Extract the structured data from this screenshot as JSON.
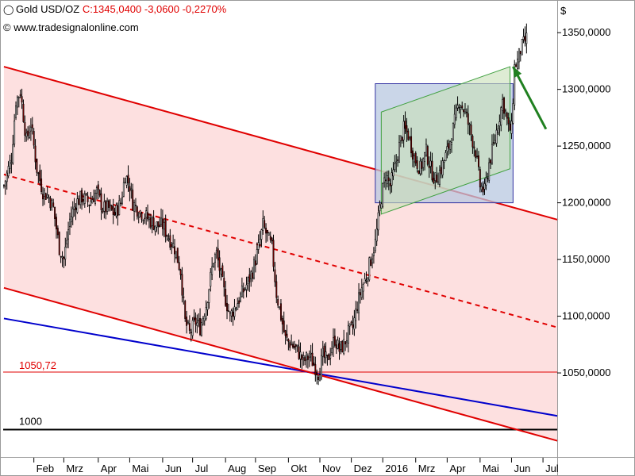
{
  "header": {
    "instrument": "Gold USD/OZ",
    "quote": "C:1345,0400 -3,0600 -0,2270%",
    "copyright_symbol": "©",
    "source": "www.tradesignalonline.com"
  },
  "colors": {
    "bull": "#ffffff",
    "bear": "#8b0000",
    "wick": "#000000",
    "channel_line": "#e00000",
    "channel_fill": "#fde0e0",
    "support_line": "#0000cc",
    "level_1050": "#e00000",
    "level_1000": "#000000",
    "box_fill": "#b8c8e0",
    "box_border": "#3030a0",
    "small_channel_fill": "#c8e0b8",
    "small_channel_line": "#40a040",
    "arrow": "#208020"
  },
  "chart_data": {
    "type": "candlestick",
    "currency_label": "$",
    "y_axis": {
      "ylim": [
        978,
        1376
      ],
      "ticks": [
        1050,
        1100,
        1150,
        1200,
        1250,
        1300,
        1350
      ],
      "tick_labels": [
        "1050,0000",
        "1100,0000",
        "1150,0000",
        "1200,0000",
        "1250,0000",
        "1300,0000",
        "1350,0000"
      ]
    },
    "x_axis": {
      "labels": [
        "Feb",
        "Mrz",
        "Apr",
        "Mai",
        "Jun",
        "Jul",
        "Aug",
        "Sep",
        "Okt",
        "Nov",
        "Dez",
        "2016",
        "Mrz",
        "Apr",
        "Mai",
        "Jun",
        "Jul"
      ],
      "index": [
        20,
        40,
        63,
        84,
        106,
        126,
        148,
        168,
        190,
        211,
        232,
        253,
        275,
        296,
        318,
        339,
        360
      ]
    },
    "n_bars": 370,
    "price_anchors": [
      [
        0,
        1215
      ],
      [
        5,
        1240
      ],
      [
        8,
        1290
      ],
      [
        11,
        1298
      ],
      [
        15,
        1255
      ],
      [
        18,
        1270
      ],
      [
        22,
        1230
      ],
      [
        26,
        1210
      ],
      [
        30,
        1205
      ],
      [
        33,
        1195
      ],
      [
        37,
        1160
      ],
      [
        40,
        1150
      ],
      [
        44,
        1185
      ],
      [
        48,
        1200
      ],
      [
        52,
        1205
      ],
      [
        57,
        1200
      ],
      [
        62,
        1210
      ],
      [
        66,
        1195
      ],
      [
        70,
        1195
      ],
      [
        74,
        1190
      ],
      [
        78,
        1200
      ],
      [
        81,
        1225
      ],
      [
        84,
        1215
      ],
      [
        86,
        1200
      ],
      [
        89,
        1195
      ],
      [
        93,
        1190
      ],
      [
        97,
        1185
      ],
      [
        102,
        1180
      ],
      [
        106,
        1180
      ],
      [
        110,
        1170
      ],
      [
        114,
        1160
      ],
      [
        118,
        1140
      ],
      [
        121,
        1095
      ],
      [
        124,
        1085
      ],
      [
        128,
        1095
      ],
      [
        131,
        1090
      ],
      [
        135,
        1110
      ],
      [
        140,
        1150
      ],
      [
        142,
        1155
      ],
      [
        145,
        1135
      ],
      [
        148,
        1115
      ],
      [
        151,
        1100
      ],
      [
        155,
        1110
      ],
      [
        159,
        1120
      ],
      [
        163,
        1130
      ],
      [
        166,
        1140
      ],
      [
        170,
        1160
      ],
      [
        173,
        1180
      ],
      [
        176,
        1170
      ],
      [
        179,
        1160
      ],
      [
        182,
        1120
      ],
      [
        185,
        1100
      ],
      [
        188,
        1080
      ],
      [
        192,
        1075
      ],
      [
        196,
        1070
      ],
      [
        200,
        1060
      ],
      [
        204,
        1065
      ],
      [
        206,
        1060
      ],
      [
        210,
        1050
      ],
      [
        213,
        1065
      ],
      [
        216,
        1060
      ],
      [
        218,
        1070
      ],
      [
        221,
        1080
      ],
      [
        224,
        1070
      ],
      [
        227,
        1075
      ],
      [
        230,
        1085
      ],
      [
        233,
        1090
      ],
      [
        236,
        1110
      ],
      [
        239,
        1125
      ],
      [
        242,
        1135
      ],
      [
        245,
        1150
      ],
      [
        248,
        1165
      ],
      [
        250,
        1185
      ],
      [
        252,
        1205
      ],
      [
        255,
        1225
      ],
      [
        258,
        1215
      ],
      [
        261,
        1230
      ],
      [
        264,
        1250
      ],
      [
        267,
        1265
      ],
      [
        270,
        1260
      ],
      [
        274,
        1240
      ],
      [
        278,
        1230
      ],
      [
        282,
        1245
      ],
      [
        285,
        1230
      ],
      [
        288,
        1220
      ],
      [
        292,
        1230
      ],
      [
        296,
        1245
      ],
      [
        300,
        1265
      ],
      [
        304,
        1290
      ],
      [
        308,
        1280
      ],
      [
        312,
        1260
      ],
      [
        315,
        1245
      ],
      [
        318,
        1215
      ],
      [
        321,
        1210
      ],
      [
        324,
        1235
      ],
      [
        327,
        1250
      ],
      [
        330,
        1270
      ],
      [
        333,
        1290
      ],
      [
        335,
        1280
      ],
      [
        337,
        1265
      ],
      [
        339,
        1265
      ],
      [
        341,
        1320
      ],
      [
        343,
        1325
      ],
      [
        345,
        1335
      ],
      [
        347,
        1340
      ],
      [
        349,
        1345
      ]
    ],
    "annotations": {
      "level_1050_label": "1050,72",
      "level_1050_value": 1050.72,
      "level_1000_label": "1000",
      "level_1000_value": 1000,
      "channel_upper": [
        [
          0,
          1320
        ],
        [
          370,
          1185
        ]
      ],
      "channel_mid": [
        [
          0,
          1225
        ],
        [
          370,
          1090
        ]
      ],
      "channel_lower": [
        [
          0,
          1125
        ],
        [
          370,
          990
        ]
      ],
      "support": [
        [
          0,
          1098
        ],
        [
          370,
          1012
        ]
      ],
      "box": {
        "x0": 248,
        "x1": 340,
        "y0": 1200,
        "y1": 1305
      },
      "small_channel": {
        "x0": 252,
        "x1": 338,
        "lower": [
          1190,
          1230
        ],
        "upper": [
          1280,
          1320
        ]
      },
      "arrow": {
        "from": [
          362,
          1265
        ],
        "to": [
          340,
          1320
        ]
      }
    }
  }
}
